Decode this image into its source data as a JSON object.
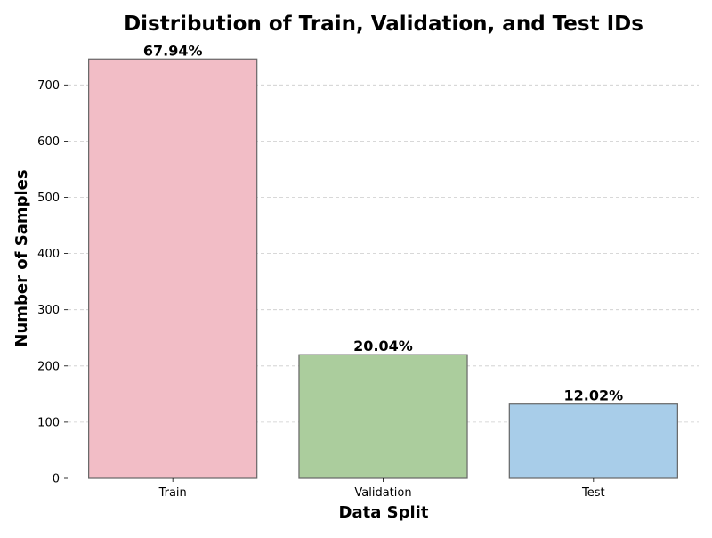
{
  "chart_data": {
    "type": "bar",
    "title": "Distribution of Train, Validation, and Test IDs",
    "xlabel": "Data Split",
    "ylabel": "Number of Samples",
    "categories": [
      "Train",
      "Validation",
      "Test"
    ],
    "values": [
      746,
      220,
      132
    ],
    "data_labels": [
      "67.94%",
      "20.04%",
      "12.02%"
    ],
    "colors": [
      "#f2bdc6",
      "#abcd9d",
      "#a8cde9"
    ],
    "edge_color": "#666666",
    "ylim": [
      0,
      750
    ],
    "yticks": [
      0,
      100,
      200,
      300,
      400,
      500,
      600,
      700
    ],
    "grid": "y-dashed",
    "legend": "none"
  }
}
